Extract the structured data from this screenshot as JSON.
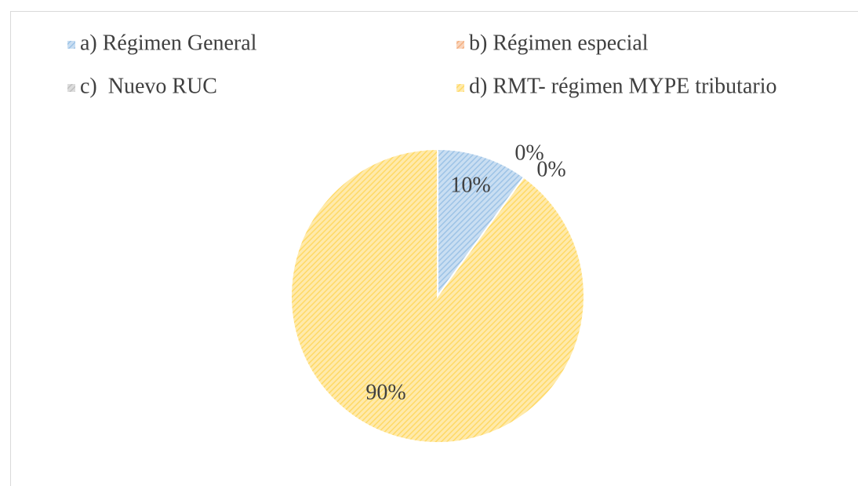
{
  "chart_data": {
    "type": "pie",
    "categories": [
      "a) Régimen General",
      "b) Régimen especial",
      "c)  Nuevo RUC",
      "d) RMT- régimen MYPE tributario"
    ],
    "values": [
      10,
      0,
      0,
      90
    ],
    "value_labels": [
      "10%",
      "0%",
      "0%",
      "90%"
    ],
    "colors": [
      "#9dc3e6",
      "#f4b183",
      "#bfbfbf",
      "#ffd966"
    ],
    "legend": "top"
  }
}
